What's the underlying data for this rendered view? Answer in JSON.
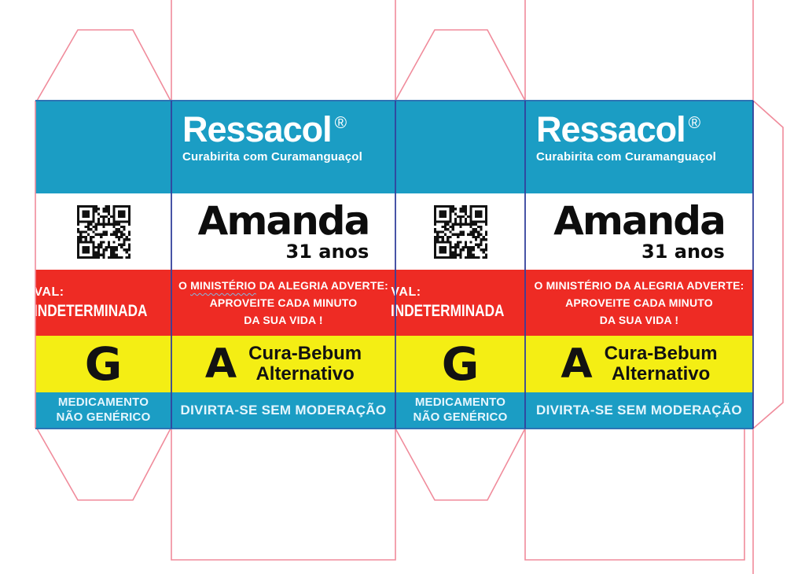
{
  "colors": {
    "teal": "#1b9dc4",
    "red": "#ee2b24",
    "yellow": "#f4ee14",
    "black": "#121212",
    "white-text": "#ffffff",
    "footer-text": "#e6f6fd",
    "cut": "#f08b9b",
    "fold": "#2e73b4",
    "crease": "#33409c",
    "squiggle": "#86b6df"
  },
  "product": {
    "brand": "Ressacol",
    "registered_mark": "®",
    "subtitle": "Curabirita com Curamanguaçol",
    "patient_name": "Amanda",
    "patient_age": "31 anos",
    "warning": {
      "line1_start": "O",
      "line1_word": "MINISTÉRIO",
      "line1_end": "DA ALEGRIA ADVERTE:",
      "line2": "APROVEITE CADA MINUTO",
      "line3": "DA SUA VIDA !"
    },
    "category_letter": "A",
    "category_line1": "Cura-Bebum",
    "category_line2": "Alternativo",
    "slogan": "DIVIRTA-SE SEM MODERAÇÃO"
  },
  "side_panel": {
    "validity_label": "VAL:",
    "validity_value": "INDETERMINADA",
    "generic_letter": "G",
    "generic_line1": "MEDICAMENTO",
    "generic_line2": "NÃO GENÉRICO",
    "qr_icon": "qr-code-icon"
  }
}
